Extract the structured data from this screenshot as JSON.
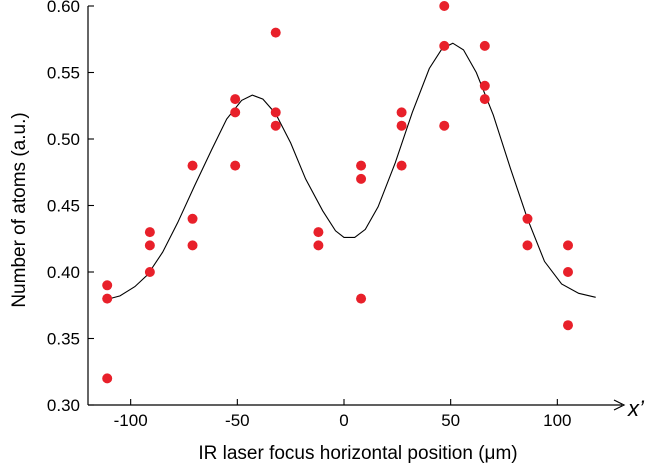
{
  "chart_data": {
    "type": "scatter",
    "title": "",
    "xlabel": "IR laser focus horizontal position (μm)",
    "ylabel": "Number of atoms (a.u.)",
    "x_axis_variable": "x’",
    "xlim": [
      -120,
      120
    ],
    "ylim": [
      0.3,
      0.6
    ],
    "x_ticks": [
      -100,
      -50,
      0,
      50,
      100
    ],
    "x_tick_labels": [
      "-100",
      "-50",
      "0",
      "50",
      "100"
    ],
    "y_ticks": [
      0.3,
      0.35,
      0.4,
      0.45,
      0.5,
      0.55,
      0.6
    ],
    "y_tick_labels": [
      "0.30",
      "0.35",
      "0.40",
      "0.45",
      "0.50",
      "0.55",
      "0.60"
    ],
    "grid": false,
    "legend": "none",
    "point_color": "#e8202a",
    "line_color": "#000000",
    "series": [
      {
        "type": "scatter",
        "points": [
          [
            -111,
            0.39
          ],
          [
            -111,
            0.38
          ],
          [
            -111,
            0.32
          ],
          [
            -91,
            0.43
          ],
          [
            -91,
            0.42
          ],
          [
            -91,
            0.4
          ],
          [
            -71,
            0.48
          ],
          [
            -71,
            0.44
          ],
          [
            -71,
            0.42
          ],
          [
            -51,
            0.53
          ],
          [
            -51,
            0.52
          ],
          [
            -51,
            0.48
          ],
          [
            -32,
            0.58
          ],
          [
            -32,
            0.52
          ],
          [
            -32,
            0.51
          ],
          [
            -12,
            0.43
          ],
          [
            -12,
            0.42
          ],
          [
            8,
            0.48
          ],
          [
            8,
            0.47
          ],
          [
            8,
            0.38
          ],
          [
            27,
            0.52
          ],
          [
            27,
            0.51
          ],
          [
            27,
            0.48
          ],
          [
            47,
            0.6
          ],
          [
            47,
            0.57
          ],
          [
            47,
            0.51
          ],
          [
            66,
            0.57
          ],
          [
            66,
            0.54
          ],
          [
            66,
            0.53
          ],
          [
            86,
            0.44
          ],
          [
            86,
            0.42
          ],
          [
            105,
            0.42
          ],
          [
            105,
            0.4
          ],
          [
            105,
            0.36
          ]
        ]
      },
      {
        "type": "line",
        "points": [
          [
            -112,
            0.379
          ],
          [
            -105,
            0.382
          ],
          [
            -98,
            0.389
          ],
          [
            -92,
            0.398
          ],
          [
            -85,
            0.415
          ],
          [
            -78,
            0.437
          ],
          [
            -70,
            0.465
          ],
          [
            -62,
            0.492
          ],
          [
            -55,
            0.515
          ],
          [
            -48,
            0.529
          ],
          [
            -43,
            0.533
          ],
          [
            -38,
            0.53
          ],
          [
            -32,
            0.519
          ],
          [
            -25,
            0.497
          ],
          [
            -18,
            0.47
          ],
          [
            -10,
            0.446
          ],
          [
            -4,
            0.431
          ],
          [
            0,
            0.426
          ],
          [
            5,
            0.426
          ],
          [
            10,
            0.432
          ],
          [
            16,
            0.449
          ],
          [
            24,
            0.482
          ],
          [
            32,
            0.52
          ],
          [
            40,
            0.553
          ],
          [
            46,
            0.568
          ],
          [
            51,
            0.572
          ],
          [
            56,
            0.567
          ],
          [
            62,
            0.55
          ],
          [
            70,
            0.518
          ],
          [
            78,
            0.478
          ],
          [
            86,
            0.44
          ],
          [
            94,
            0.408
          ],
          [
            102,
            0.391
          ],
          [
            110,
            0.384
          ],
          [
            118,
            0.381
          ]
        ]
      }
    ]
  }
}
